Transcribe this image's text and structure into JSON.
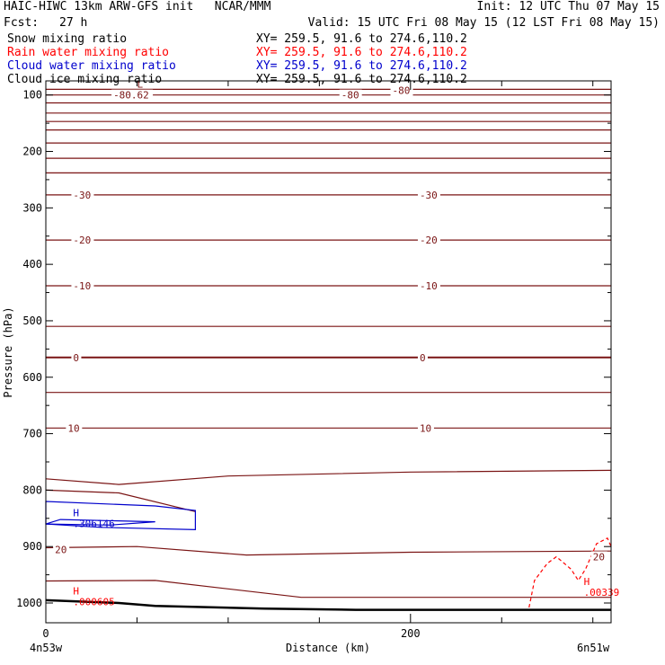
{
  "header": {
    "title": "HAIC-HIWC 13km ARW-GFS init   NCAR/MMM",
    "init": "Init: 12 UTC Thu 07 May 15",
    "fcst_label": "Fcst:",
    "fcst_value": "27 h",
    "valid": "Valid: 15 UTC Fri 08 May 15 (12 LST Fri 08 May 15)"
  },
  "fields": [
    {
      "name": "Snow mixing ratio",
      "xy": "XY= 259.5, 91.6 to 274.6,110.2",
      "color": "#000000"
    },
    {
      "name": "Rain water mixing ratio",
      "xy": "XY= 259.5, 91.6 to 274.6,110.2",
      "color": "#ff0000"
    },
    {
      "name": "Cloud water mixing ratio",
      "xy": "XY= 259.5, 91.6 to 274.6,110.2",
      "color": "#0000cc"
    },
    {
      "name": "Cloud ice mixing ratio",
      "xy": "XY= 259.5, 91.6 to 274.6,110.2",
      "color": "#000000"
    }
  ],
  "colors": {
    "temperature_contour": "#7a1414",
    "rain": "#ff0000",
    "cloud_water": "#0000cc",
    "terrain": "#000000"
  },
  "chart_data": {
    "type": "line",
    "title": "",
    "xlabel": "Distance (km)",
    "ylabel": "Pressure (hPa)",
    "xlim": [
      0,
      310
    ],
    "ylim": [
      1035,
      75
    ],
    "x_ticks": [
      0,
      200
    ],
    "y_ticks": [
      100,
      200,
      300,
      400,
      500,
      600,
      700,
      800,
      900,
      1000
    ],
    "x_endpoints": {
      "left": "4n53w",
      "right": "6n51w"
    },
    "isotherms": [
      {
        "label": "-80",
        "points": [
          [
            0,
            90
          ],
          [
            310,
            90
          ]
        ]
      },
      {
        "label": "",
        "points": [
          [
            0,
            100
          ],
          [
            310,
            100
          ]
        ]
      },
      {
        "label": "",
        "points": [
          [
            0,
            114
          ],
          [
            310,
            114
          ]
        ]
      },
      {
        "label": "",
        "points": [
          [
            0,
            132
          ],
          [
            310,
            132
          ]
        ]
      },
      {
        "label": "",
        "points": [
          [
            0,
            147
          ],
          [
            310,
            147
          ]
        ]
      },
      {
        "label": "",
        "points": [
          [
            0,
            162
          ],
          [
            310,
            162
          ]
        ]
      },
      {
        "label": "",
        "points": [
          [
            0,
            185
          ],
          [
            310,
            185
          ]
        ]
      },
      {
        "label": "",
        "points": [
          [
            0,
            212
          ],
          [
            310,
            212
          ]
        ]
      },
      {
        "label": "",
        "points": [
          [
            0,
            238
          ],
          [
            310,
            238
          ]
        ]
      },
      {
        "label": "-30",
        "points": [
          [
            0,
            277
          ],
          [
            310,
            277
          ]
        ]
      },
      {
        "label": "-20",
        "points": [
          [
            0,
            357
          ],
          [
            310,
            357
          ]
        ]
      },
      {
        "label": "-10",
        "points": [
          [
            0,
            438
          ],
          [
            310,
            438
          ]
        ]
      },
      {
        "label": "",
        "points": [
          [
            0,
            510
          ],
          [
            310,
            510
          ]
        ]
      },
      {
        "label": "0",
        "points": [
          [
            0,
            565
          ],
          [
            310,
            565
          ]
        ]
      },
      {
        "label": "",
        "points": [
          [
            0,
            627
          ],
          [
            310,
            627
          ]
        ]
      },
      {
        "label": "10",
        "points": [
          [
            0,
            690
          ],
          [
            310,
            690
          ]
        ]
      },
      {
        "label": "",
        "points": [
          [
            0,
            780
          ],
          [
            40,
            790
          ],
          [
            100,
            775
          ],
          [
            200,
            768
          ],
          [
            310,
            765
          ]
        ]
      },
      {
        "label": "",
        "points": [
          [
            0,
            800
          ],
          [
            40,
            805
          ],
          [
            82,
            838
          ]
        ]
      },
      {
        "label": "20",
        "points": [
          [
            0,
            902
          ],
          [
            50,
            900
          ],
          [
            110,
            915
          ],
          [
            200,
            910
          ],
          [
            310,
            908
          ]
        ]
      },
      {
        "label": "",
        "points": [
          [
            0,
            961
          ],
          [
            60,
            960
          ],
          [
            140,
            990
          ],
          [
            310,
            990
          ]
        ]
      }
    ],
    "temperature_labels": [
      {
        "text": "-80.62",
        "x": 37,
        "p": 100
      },
      {
        "text": "-80",
        "x": 162,
        "p": 100
      },
      {
        "text": "-80",
        "x": 190,
        "p": 92
      },
      {
        "text": "-30",
        "x": 15,
        "p": 277
      },
      {
        "text": "-30",
        "x": 205,
        "p": 277
      },
      {
        "text": "-20",
        "x": 15,
        "p": 357
      },
      {
        "text": "-20",
        "x": 205,
        "p": 357
      },
      {
        "text": "-10",
        "x": 15,
        "p": 438
      },
      {
        "text": "-10",
        "x": 205,
        "p": 438
      },
      {
        "text": "0",
        "x": 15,
        "p": 565
      },
      {
        "text": "0",
        "x": 205,
        "p": 565
      },
      {
        "text": "10",
        "x": 12,
        "p": 690
      },
      {
        "text": "10",
        "x": 205,
        "p": 690
      },
      {
        "text": "20",
        "x": 5,
        "p": 905
      },
      {
        "text": "20",
        "x": 300,
        "p": 918
      }
    ],
    "extrema": [
      {
        "type": "L",
        "x": 50,
        "p": 87,
        "value": "",
        "color": "#7a1414"
      },
      {
        "type": "H",
        "x": 15,
        "p": 846,
        "value": ".306146",
        "color": "#0000cc"
      },
      {
        "type": "H",
        "x": 15,
        "p": 985,
        "value": ".000605",
        "color": "#ff0000"
      },
      {
        "type": "H",
        "x": 295,
        "p": 968,
        "value": ".00339",
        "color": "#ff0000"
      }
    ],
    "cloud_water_contour": [
      [
        0,
        860
      ],
      [
        0,
        820
      ],
      [
        60,
        828
      ],
      [
        82,
        836
      ],
      [
        82,
        870
      ],
      [
        30,
        866
      ]
    ],
    "cloud_water_inner": [
      [
        0,
        860
      ],
      [
        8,
        852
      ],
      [
        60,
        856
      ],
      [
        35,
        862
      ]
    ],
    "rain_contour": [
      [
        265,
        1008
      ],
      [
        268,
        960
      ],
      [
        275,
        930
      ],
      [
        280,
        918
      ],
      [
        288,
        940
      ],
      [
        292,
        960
      ],
      [
        296,
        940
      ],
      [
        302,
        895
      ],
      [
        308,
        885
      ],
      [
        310,
        900
      ]
    ],
    "terrain": [
      [
        0,
        995
      ],
      [
        40,
        1000
      ],
      [
        60,
        1005
      ],
      [
        120,
        1010
      ],
      [
        170,
        1012
      ],
      [
        310,
        1012
      ]
    ]
  }
}
